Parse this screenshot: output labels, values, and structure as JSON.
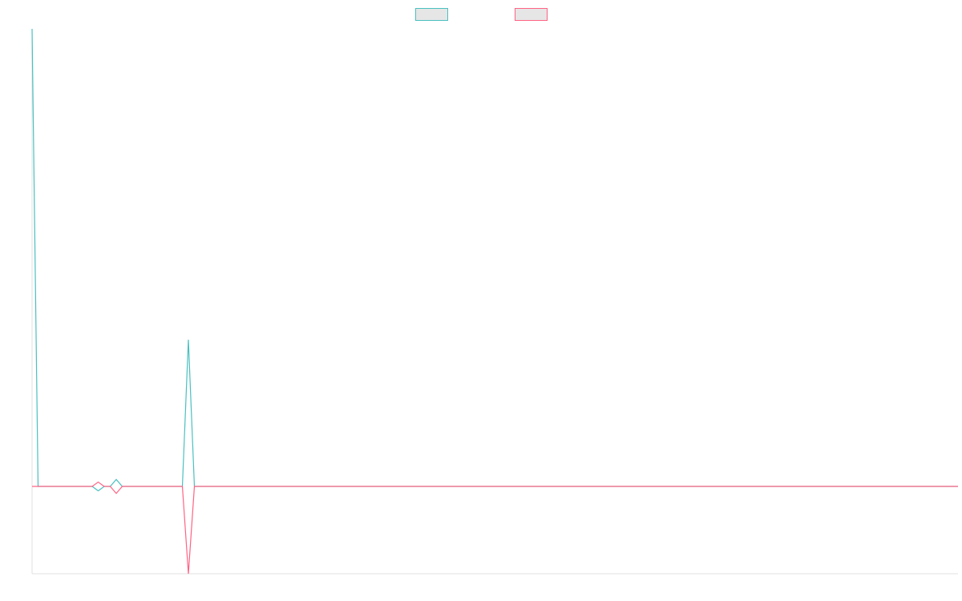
{
  "chart_data": {
    "type": "line",
    "x": [
      0,
      1,
      10,
      11,
      12,
      13,
      14,
      15,
      25,
      26,
      27,
      154
    ],
    "xlim": [
      0,
      154
    ],
    "ylim": [
      -1,
      5.24
    ],
    "legend": "top",
    "series": [
      {
        "color": "#4bc0c0",
        "values": [
          5.24,
          0,
          0,
          -0.05,
          0,
          0,
          0.08,
          0,
          0,
          1.68,
          0,
          0
        ]
      },
      {
        "color": "#ff6384",
        "values": [
          0,
          0,
          0,
          0.05,
          0,
          0,
          -0.08,
          0,
          0,
          -1,
          0,
          0
        ]
      }
    ]
  }
}
